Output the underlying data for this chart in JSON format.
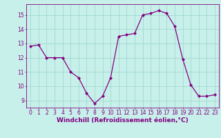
{
  "x": [
    0,
    1,
    2,
    3,
    4,
    5,
    6,
    7,
    8,
    9,
    10,
    11,
    12,
    13,
    14,
    15,
    16,
    17,
    18,
    19,
    20,
    21,
    22,
    23
  ],
  "y": [
    12.8,
    12.9,
    12.0,
    12.0,
    12.0,
    11.0,
    10.6,
    9.5,
    8.8,
    9.3,
    10.6,
    13.5,
    13.6,
    13.7,
    15.0,
    15.1,
    15.3,
    15.1,
    14.2,
    11.9,
    10.1,
    9.3,
    9.3,
    9.4
  ],
  "line_color": "#800080",
  "marker": "D",
  "marker_size": 2.2,
  "bg_color": "#c8f0ea",
  "grid_color": "#a0d8d0",
  "xlabel": "Windchill (Refroidissement éolien,°C)",
  "xlabel_color": "#800080",
  "tick_color": "#800080",
  "ylim": [
    8.5,
    15.75
  ],
  "xlim": [
    -0.5,
    23.5
  ],
  "yticks": [
    9,
    10,
    11,
    12,
    13,
    14,
    15
  ],
  "xticks": [
    0,
    1,
    2,
    3,
    4,
    5,
    6,
    7,
    8,
    9,
    10,
    11,
    12,
    13,
    14,
    15,
    16,
    17,
    18,
    19,
    20,
    21,
    22,
    23
  ],
  "tick_fontsize": 5.5,
  "xlabel_fontsize": 6.5
}
